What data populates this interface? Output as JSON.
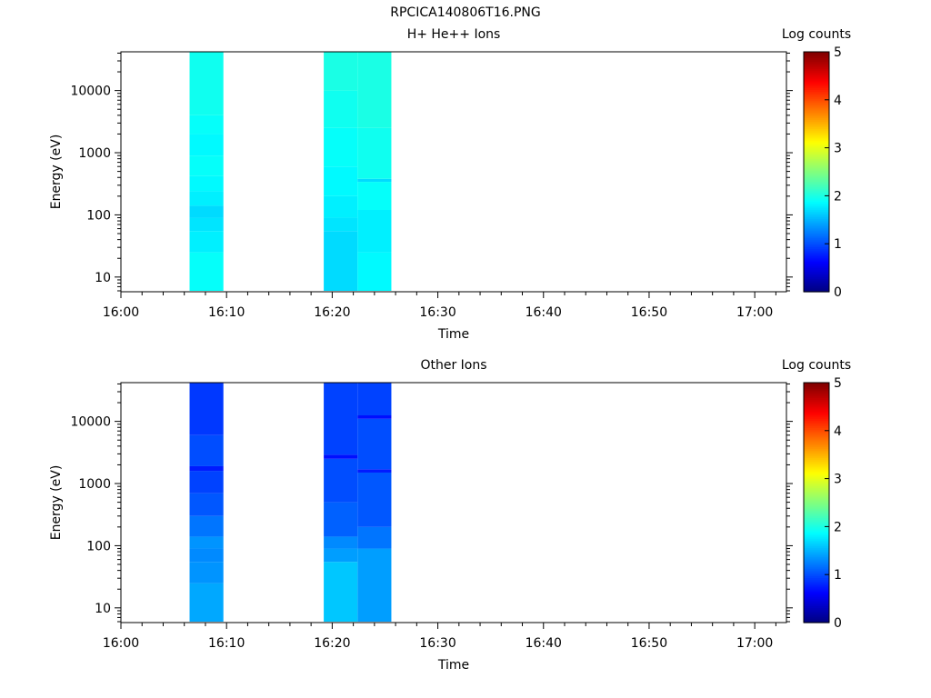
{
  "figure": {
    "title": "RPCICA140806T16.PNG"
  },
  "chart_data": [
    {
      "type": "heatmap",
      "title": "H+ He++ Ions",
      "xlabel": "Time",
      "ylabel": "Energy (eV)",
      "yscale": "log",
      "ylim": [
        5.8,
        42000
      ],
      "xlim": [
        "16:00",
        "17:03"
      ],
      "x_ticks": [
        "16:00",
        "16:10",
        "16:20",
        "16:30",
        "16:40",
        "16:50",
        "17:00"
      ],
      "y_ticks": [
        "10",
        "100",
        "1000",
        "10000"
      ],
      "colorbar": {
        "label": "Log counts",
        "min": 0,
        "max": 5,
        "ticks": [
          "0",
          "1",
          "2",
          "3",
          "4",
          "5"
        ]
      },
      "cells": [
        {
          "t_start": "16:06.5",
          "t_end": "16:09.7",
          "e_start": 6,
          "e_end": 25,
          "log_counts": 1.9
        },
        {
          "t_start": "16:06.5",
          "t_end": "16:09.7",
          "e_start": 25,
          "e_end": 55,
          "log_counts": 1.8
        },
        {
          "t_start": "16:06.5",
          "t_end": "16:09.7",
          "e_start": 55,
          "e_end": 90,
          "log_counts": 1.75
        },
        {
          "t_start": "16:06.5",
          "t_end": "16:09.7",
          "e_start": 90,
          "e_end": 140,
          "log_counts": 1.7
        },
        {
          "t_start": "16:06.5",
          "t_end": "16:09.7",
          "e_start": 140,
          "e_end": 240,
          "log_counts": 1.8
        },
        {
          "t_start": "16:06.5",
          "t_end": "16:09.7",
          "e_start": 240,
          "e_end": 420,
          "log_counts": 1.85
        },
        {
          "t_start": "16:06.5",
          "t_end": "16:09.7",
          "e_start": 420,
          "e_end": 900,
          "log_counts": 1.9
        },
        {
          "t_start": "16:06.5",
          "t_end": "16:09.7",
          "e_start": 900,
          "e_end": 2000,
          "log_counts": 1.85
        },
        {
          "t_start": "16:06.5",
          "t_end": "16:09.7",
          "e_start": 2000,
          "e_end": 4000,
          "log_counts": 1.9
        },
        {
          "t_start": "16:06.5",
          "t_end": "16:09.7",
          "e_start": 4000,
          "e_end": 42000,
          "log_counts": 1.95
        },
        {
          "t_start": "16:19.2",
          "t_end": "16:22.4",
          "e_start": 6,
          "e_end": 55,
          "log_counts": 1.7
        },
        {
          "t_start": "16:19.2",
          "t_end": "16:22.4",
          "e_start": 55,
          "e_end": 90,
          "log_counts": 1.75
        },
        {
          "t_start": "16:19.2",
          "t_end": "16:22.4",
          "e_start": 90,
          "e_end": 200,
          "log_counts": 1.8
        },
        {
          "t_start": "16:19.2",
          "t_end": "16:22.4",
          "e_start": 200,
          "e_end": 600,
          "log_counts": 1.85
        },
        {
          "t_start": "16:19.2",
          "t_end": "16:22.4",
          "e_start": 600,
          "e_end": 2500,
          "log_counts": 1.9
        },
        {
          "t_start": "16:19.2",
          "t_end": "16:22.4",
          "e_start": 2500,
          "e_end": 10000,
          "log_counts": 1.95
        },
        {
          "t_start": "16:19.2",
          "t_end": "16:22.4",
          "e_start": 10000,
          "e_end": 42000,
          "log_counts": 2.0
        },
        {
          "t_start": "16:22.4",
          "t_end": "16:25.6",
          "e_start": 6,
          "e_end": 25,
          "log_counts": 1.85
        },
        {
          "t_start": "16:22.4",
          "t_end": "16:25.6",
          "e_start": 25,
          "e_end": 120,
          "log_counts": 1.8
        },
        {
          "t_start": "16:22.4",
          "t_end": "16:25.6",
          "e_start": 120,
          "e_end": 340,
          "log_counts": 1.9
        },
        {
          "t_start": "16:22.4",
          "t_end": "16:25.6",
          "e_start": 340,
          "e_end": 380,
          "log_counts": 1.7
        },
        {
          "t_start": "16:22.4",
          "t_end": "16:25.6",
          "e_start": 380,
          "e_end": 2500,
          "log_counts": 1.95
        },
        {
          "t_start": "16:22.4",
          "t_end": "16:25.6",
          "e_start": 2500,
          "e_end": 42000,
          "log_counts": 2.0
        }
      ]
    },
    {
      "type": "heatmap",
      "title": "Other Ions",
      "xlabel": "Time",
      "ylabel": "Energy (eV)",
      "yscale": "log",
      "ylim": [
        5.8,
        42000
      ],
      "xlim": [
        "16:00",
        "17:03"
      ],
      "x_ticks": [
        "16:00",
        "16:10",
        "16:20",
        "16:30",
        "16:40",
        "16:50",
        "17:00"
      ],
      "y_ticks": [
        "10",
        "100",
        "1000",
        "10000"
      ],
      "colorbar": {
        "label": "Log counts",
        "min": 0,
        "max": 5,
        "ticks": [
          "0",
          "1",
          "2",
          "3",
          "4",
          "5"
        ]
      },
      "cells": [
        {
          "t_start": "16:06.5",
          "t_end": "16:09.7",
          "e_start": 6,
          "e_end": 25,
          "log_counts": 1.45
        },
        {
          "t_start": "16:06.5",
          "t_end": "16:09.7",
          "e_start": 25,
          "e_end": 55,
          "log_counts": 1.35
        },
        {
          "t_start": "16:06.5",
          "t_end": "16:09.7",
          "e_start": 55,
          "e_end": 90,
          "log_counts": 1.3
        },
        {
          "t_start": "16:06.5",
          "t_end": "16:09.7",
          "e_start": 90,
          "e_end": 140,
          "log_counts": 1.35
        },
        {
          "t_start": "16:06.5",
          "t_end": "16:09.7",
          "e_start": 140,
          "e_end": 300,
          "log_counts": 1.2
        },
        {
          "t_start": "16:06.5",
          "t_end": "16:09.7",
          "e_start": 300,
          "e_end": 700,
          "log_counts": 1.05
        },
        {
          "t_start": "16:06.5",
          "t_end": "16:09.7",
          "e_start": 700,
          "e_end": 1600,
          "log_counts": 0.95
        },
        {
          "t_start": "16:06.5",
          "t_end": "16:09.7",
          "e_start": 1600,
          "e_end": 1900,
          "log_counts": 0.75
        },
        {
          "t_start": "16:06.5",
          "t_end": "16:09.7",
          "e_start": 1900,
          "e_end": 6000,
          "log_counts": 1.0
        },
        {
          "t_start": "16:06.5",
          "t_end": "16:09.7",
          "e_start": 6000,
          "e_end": 42000,
          "log_counts": 0.9
        },
        {
          "t_start": "16:19.2",
          "t_end": "16:22.4",
          "e_start": 6,
          "e_end": 55,
          "log_counts": 1.6
        },
        {
          "t_start": "16:19.2",
          "t_end": "16:22.4",
          "e_start": 55,
          "e_end": 90,
          "log_counts": 1.4
        },
        {
          "t_start": "16:19.2",
          "t_end": "16:22.4",
          "e_start": 90,
          "e_end": 140,
          "log_counts": 1.3
        },
        {
          "t_start": "16:19.2",
          "t_end": "16:22.4",
          "e_start": 140,
          "e_end": 500,
          "log_counts": 1.1
        },
        {
          "t_start": "16:19.2",
          "t_end": "16:22.4",
          "e_start": 500,
          "e_end": 2500,
          "log_counts": 1.0
        },
        {
          "t_start": "16:19.2",
          "t_end": "16:22.4",
          "e_start": 2500,
          "e_end": 2900,
          "log_counts": 0.7
        },
        {
          "t_start": "16:19.2",
          "t_end": "16:22.4",
          "e_start": 2900,
          "e_end": 42000,
          "log_counts": 0.95
        },
        {
          "t_start": "16:22.4",
          "t_end": "16:25.6",
          "e_start": 6,
          "e_end": 90,
          "log_counts": 1.4
        },
        {
          "t_start": "16:22.4",
          "t_end": "16:25.6",
          "e_start": 90,
          "e_end": 200,
          "log_counts": 1.2
        },
        {
          "t_start": "16:22.4",
          "t_end": "16:25.6",
          "e_start": 200,
          "e_end": 1500,
          "log_counts": 1.05
        },
        {
          "t_start": "16:22.4",
          "t_end": "16:25.6",
          "e_start": 1500,
          "e_end": 1700,
          "log_counts": 0.75
        },
        {
          "t_start": "16:22.4",
          "t_end": "16:25.6",
          "e_start": 1700,
          "e_end": 11000,
          "log_counts": 1.0
        },
        {
          "t_start": "16:22.4",
          "t_end": "16:25.6",
          "e_start": 11000,
          "e_end": 12500,
          "log_counts": 0.7
        },
        {
          "t_start": "16:22.4",
          "t_end": "16:25.6",
          "e_start": 12500,
          "e_end": 42000,
          "log_counts": 0.95
        }
      ]
    }
  ]
}
